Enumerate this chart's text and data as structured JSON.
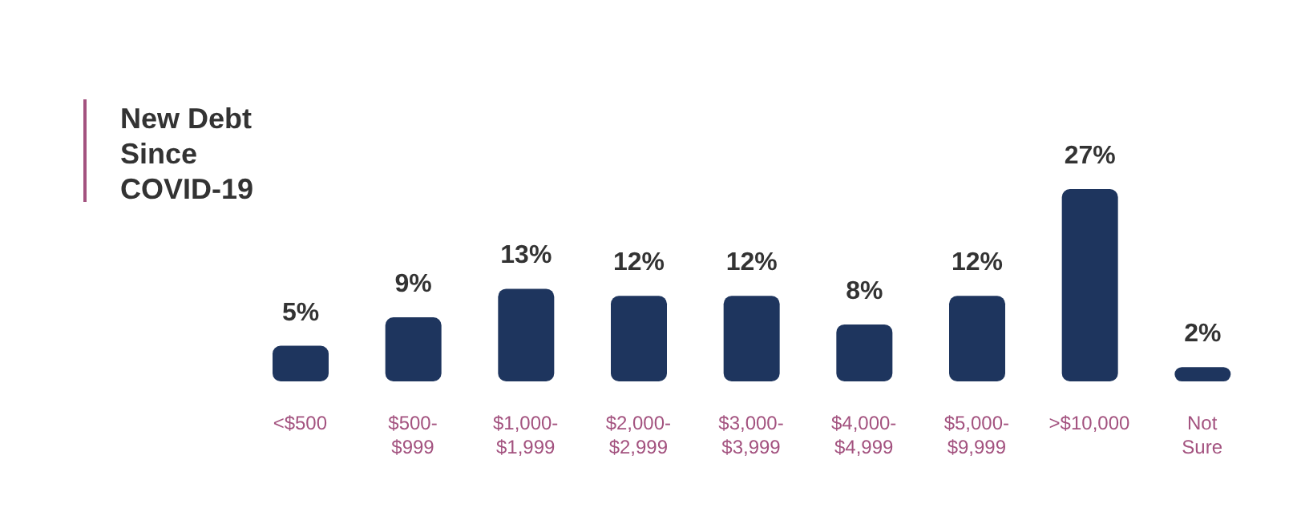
{
  "chart_data": {
    "type": "bar",
    "title": "New Debt Since COVID-19",
    "categories": [
      "<$500",
      "$500-$999",
      "$1,000-$1,999",
      "$2,000-$2,999",
      "$3,000-$3,999",
      "$4,000-$4,999",
      "$5,000-$9,999",
      ">$10,000",
      "Not Sure"
    ],
    "values": [
      5,
      9,
      13,
      12,
      12,
      8,
      12,
      27,
      2
    ],
    "value_labels": [
      "5%",
      "9%",
      "13%",
      "12%",
      "12%",
      "8%",
      "12%",
      "27%",
      "2%"
    ],
    "color": "#1e355e",
    "legend": false,
    "grid": false
  }
}
